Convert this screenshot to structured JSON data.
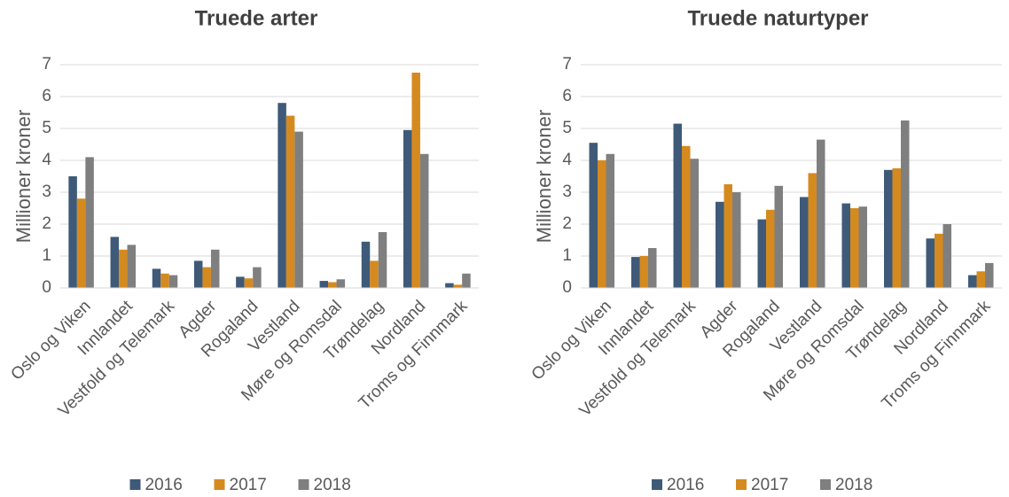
{
  "chart_data": [
    {
      "type": "bar",
      "title": "Truede arter",
      "y_label": "Millioner kroner",
      "categories": [
        "Oslo og Viken",
        "Innlandet",
        "Vestfold og Telemark",
        "Agder",
        "Rogaland",
        "Vestland",
        "Møre og Romsdal",
        "Trøndelag",
        "Nordland",
        "Troms og Finnmark"
      ],
      "series": [
        {
          "name": "2016",
          "color": "#3e5a78",
          "values": [
            3.5,
            1.6,
            0.6,
            0.85,
            0.35,
            5.8,
            0.22,
            1.45,
            4.95,
            0.15
          ]
        },
        {
          "name": "2017",
          "color": "#d58a1f",
          "values": [
            2.8,
            1.2,
            0.45,
            0.65,
            0.3,
            5.4,
            0.18,
            0.85,
            6.75,
            0.1
          ]
        },
        {
          "name": "2018",
          "color": "#7f7f7f",
          "values": [
            4.1,
            1.35,
            0.4,
            1.2,
            0.65,
            4.9,
            0.27,
            1.75,
            4.2,
            0.45
          ]
        }
      ],
      "ylim": [
        0,
        7
      ],
      "yticks": [
        0,
        1,
        2,
        3,
        4,
        5,
        6,
        7
      ],
      "grid": true,
      "legend": "bottom"
    },
    {
      "type": "bar",
      "title": "Truede naturtyper",
      "y_label": "Millioner kroner",
      "categories": [
        "Oslo og Viken",
        "Innlandet",
        "Vestfold og Telemark",
        "Agder",
        "Rogaland",
        "Vestland",
        "Møre og Romsdal",
        "Trøndelag",
        "Nordland",
        "Troms og Finnmark"
      ],
      "series": [
        {
          "name": "2016",
          "color": "#3e5a78",
          "values": [
            4.55,
            0.97,
            5.15,
            2.7,
            2.15,
            2.85,
            2.65,
            3.7,
            1.55,
            0.4
          ]
        },
        {
          "name": "2017",
          "color": "#d58a1f",
          "values": [
            4.0,
            1.0,
            4.45,
            3.25,
            2.45,
            3.6,
            2.5,
            3.75,
            1.7,
            0.52
          ]
        },
        {
          "name": "2018",
          "color": "#7f7f7f",
          "values": [
            4.2,
            1.25,
            4.05,
            3.0,
            3.2,
            4.65,
            2.55,
            5.25,
            2.0,
            0.78
          ]
        }
      ],
      "ylim": [
        0,
        7
      ],
      "yticks": [
        0,
        1,
        2,
        3,
        4,
        5,
        6,
        7
      ],
      "grid": true,
      "legend": "bottom"
    }
  ]
}
